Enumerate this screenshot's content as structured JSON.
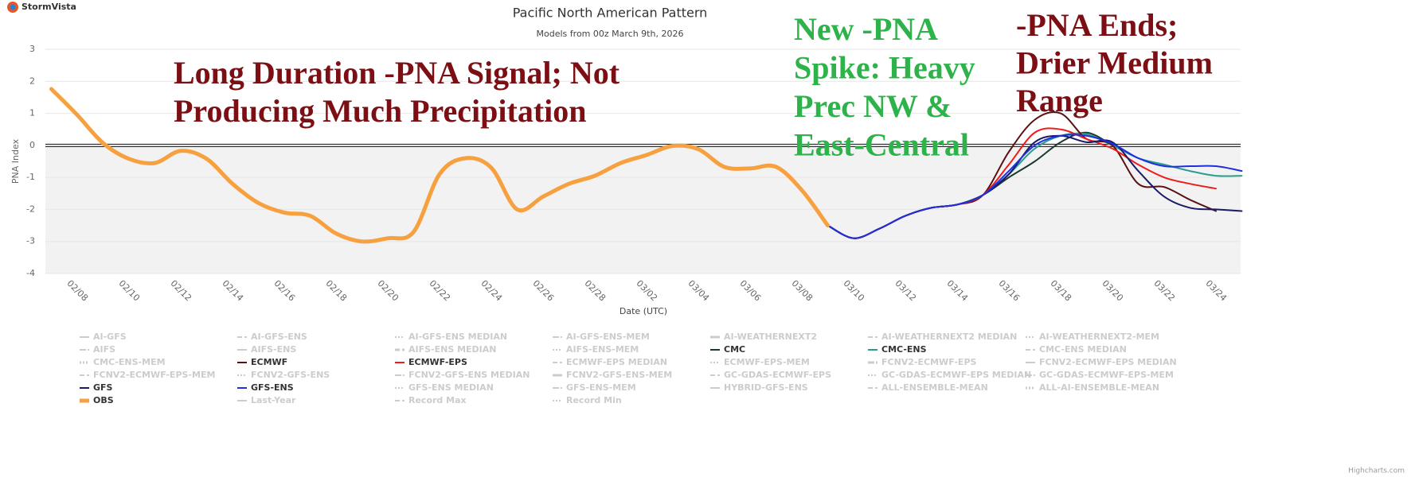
{
  "brand": "StormVista",
  "chart_data": {
    "type": "line",
    "title": "Pacific North American Pattern",
    "subtitle": "Models from 00z March 9th, 2026",
    "y_label": "PNA Index",
    "x_label": "Date (UTC)",
    "credits": "Highcharts.com",
    "grid": true,
    "ylim": [
      -4,
      3
    ],
    "yticks": [
      -4,
      -3,
      -2,
      -1,
      0,
      1,
      2,
      3
    ],
    "x": [
      "02/07",
      "02/08",
      "02/09",
      "02/10",
      "02/11",
      "02/12",
      "02/13",
      "02/14",
      "02/15",
      "02/16",
      "02/17",
      "02/18",
      "02/19",
      "02/20",
      "02/21",
      "02/22",
      "02/23",
      "02/24",
      "02/25",
      "02/26",
      "02/27",
      "02/28",
      "03/01",
      "03/02",
      "03/03",
      "03/04",
      "03/05",
      "03/06",
      "03/07",
      "03/08",
      "03/09",
      "03/10",
      "03/11",
      "03/12",
      "03/13",
      "03/14",
      "03/15",
      "03/16",
      "03/17",
      "03/18",
      "03/19",
      "03/20",
      "03/21",
      "03/22",
      "03/23",
      "03/24",
      "03/25"
    ],
    "xticks": [
      "02/08",
      "02/10",
      "02/12",
      "02/14",
      "02/16",
      "02/18",
      "02/20",
      "02/22",
      "02/24",
      "02/26",
      "02/28",
      "03/02",
      "03/04",
      "03/06",
      "03/08",
      "03/10",
      "03/12",
      "03/14",
      "03/16",
      "03/18",
      "03/20",
      "03/22",
      "03/24"
    ],
    "annotations": [
      {
        "lines": [
          "Long Duration -PNA Signal; Not",
          "Producing Much Precipitation"
        ],
        "color": "#7b0f14"
      },
      {
        "lines": [
          "New -PNA",
          "Spike: Heavy",
          "Prec NW &",
          "East-Central"
        ],
        "color": "#2db34a"
      },
      {
        "lines": [
          "-PNA Ends;",
          "Drier Medium",
          "Range"
        ],
        "color": "#7b0f14"
      }
    ],
    "series": [
      {
        "name": "AI-GFS",
        "visible": false
      },
      {
        "name": "AI-GFS-ENS",
        "visible": false
      },
      {
        "name": "AI-GFS-ENS MEDIAN",
        "visible": false
      },
      {
        "name": "AI-GFS-ENS-MEM",
        "visible": false
      },
      {
        "name": "AI-WEATHERNEXT2",
        "visible": false
      },
      {
        "name": "AI-WEATHERNEXT2 MEDIAN",
        "visible": false
      },
      {
        "name": "AI-WEATHERNEXT2-MEM",
        "visible": false
      },
      {
        "name": "AIFS",
        "visible": false
      },
      {
        "name": "AIFS-ENS",
        "visible": false
      },
      {
        "name": "AIFS-ENS MEDIAN",
        "visible": false
      },
      {
        "name": "AIFS-ENS-MEM",
        "visible": false
      },
      {
        "name": "CMC",
        "visible": true,
        "color": "#1c3b2c",
        "values": [
          null,
          null,
          null,
          null,
          null,
          null,
          null,
          null,
          null,
          null,
          null,
          null,
          null,
          null,
          null,
          null,
          null,
          null,
          null,
          null,
          null,
          null,
          null,
          null,
          null,
          null,
          null,
          null,
          null,
          null,
          -2.5,
          -2.9,
          -2.6,
          -2.2,
          -1.95,
          -1.85,
          -1.55,
          -1.0,
          -0.5,
          0.1,
          0.4,
          0.0,
          null,
          null,
          null,
          null,
          null
        ]
      },
      {
        "name": "CMC-ENS",
        "visible": true,
        "color": "#2a9d8f",
        "values": [
          null,
          null,
          null,
          null,
          null,
          null,
          null,
          null,
          null,
          null,
          null,
          null,
          null,
          null,
          null,
          null,
          null,
          null,
          null,
          null,
          null,
          null,
          null,
          null,
          null,
          null,
          null,
          null,
          null,
          null,
          -2.5,
          -2.9,
          -2.6,
          -2.2,
          -1.95,
          -1.85,
          -1.55,
          -0.9,
          -0.1,
          0.3,
          0.35,
          0.0,
          -0.4,
          -0.6,
          -0.8,
          -0.95,
          -0.95
        ]
      },
      {
        "name": "CMC-ENS MEDIAN",
        "visible": false
      },
      {
        "name": "CMC-ENS-MEM",
        "visible": false
      },
      {
        "name": "ECMWF",
        "visible": true,
        "color": "#5a1010",
        "values": [
          null,
          null,
          null,
          null,
          null,
          null,
          null,
          null,
          null,
          null,
          null,
          null,
          null,
          null,
          null,
          null,
          null,
          null,
          null,
          null,
          null,
          null,
          null,
          null,
          null,
          null,
          null,
          null,
          null,
          null,
          -2.5,
          -2.9,
          -2.6,
          -2.2,
          -1.95,
          -1.85,
          -1.55,
          -0.2,
          0.8,
          1.0,
          0.2,
          0.0,
          -1.2,
          -1.3,
          -1.7,
          -2.05,
          null
        ]
      },
      {
        "name": "ECMWF-EPS",
        "visible": true,
        "color": "#ee1c1c",
        "values": [
          null,
          null,
          null,
          null,
          null,
          null,
          null,
          null,
          null,
          null,
          null,
          null,
          null,
          null,
          null,
          null,
          null,
          null,
          null,
          null,
          null,
          null,
          null,
          null,
          null,
          null,
          null,
          null,
          null,
          null,
          -2.5,
          -2.9,
          -2.6,
          -2.2,
          -1.95,
          -1.85,
          -1.55,
          -0.6,
          0.4,
          0.5,
          0.2,
          -0.1,
          -0.6,
          -1.0,
          -1.2,
          -1.35,
          null
        ]
      },
      {
        "name": "ECMWF-EPS MEDIAN",
        "visible": false
      },
      {
        "name": "ECMWF-EPS-MEM",
        "visible": false
      },
      {
        "name": "FCNV2-ECMWF-EPS",
        "visible": false
      },
      {
        "name": "FCNV2-ECMWF-EPS MEDIAN",
        "visible": false
      },
      {
        "name": "FCNV2-ECMWF-EPS-MEM",
        "visible": false
      },
      {
        "name": "FCNV2-GFS-ENS",
        "visible": false
      },
      {
        "name": "FCNV2-GFS-ENS MEDIAN",
        "visible": false
      },
      {
        "name": "FCNV2-GFS-ENS-MEM",
        "visible": false
      },
      {
        "name": "GC-GDAS-ECMWF-EPS",
        "visible": false
      },
      {
        "name": "GC-GDAS-ECMWF-EPS MEDIAN",
        "visible": false
      },
      {
        "name": "GC-GDAS-ECMWF-EPS-MEM",
        "visible": false
      },
      {
        "name": "GFS",
        "visible": true,
        "color": "#1a1a66",
        "values": [
          null,
          null,
          null,
          null,
          null,
          null,
          null,
          null,
          null,
          null,
          null,
          null,
          null,
          null,
          null,
          null,
          null,
          null,
          null,
          null,
          null,
          null,
          null,
          null,
          null,
          null,
          null,
          null,
          null,
          null,
          -2.5,
          -2.9,
          -2.6,
          -2.2,
          -1.95,
          -1.85,
          -1.55,
          -0.9,
          0.1,
          0.3,
          0.1,
          0.1,
          -0.8,
          -1.6,
          -1.95,
          -2.0,
          -2.05
        ]
      },
      {
        "name": "GFS-ENS",
        "visible": true,
        "color": "#1f2fe0",
        "values": [
          null,
          null,
          null,
          null,
          null,
          null,
          null,
          null,
          null,
          null,
          null,
          null,
          null,
          null,
          null,
          null,
          null,
          null,
          null,
          null,
          null,
          null,
          null,
          null,
          null,
          null,
          null,
          null,
          null,
          null,
          -2.5,
          -2.9,
          -2.6,
          -2.2,
          -1.95,
          -1.85,
          -1.55,
          -0.8,
          0.0,
          0.3,
          0.3,
          0.05,
          -0.4,
          -0.65,
          -0.65,
          -0.65,
          -0.8
        ]
      },
      {
        "name": "GFS-ENS MEDIAN",
        "visible": false
      },
      {
        "name": "GFS-ENS-MEM",
        "visible": false
      },
      {
        "name": "HYBRID-GFS-ENS",
        "visible": false
      },
      {
        "name": "ALL-ENSEMBLE-MEAN",
        "visible": false
      },
      {
        "name": "ALL-AI-ENSEMBLE-MEAN",
        "visible": false
      },
      {
        "name": "OBS",
        "visible": true,
        "color": "#f7a03f",
        "values": [
          1.76,
          0.95,
          0.07,
          -0.42,
          -0.55,
          -0.17,
          -0.42,
          -1.2,
          -1.8,
          -2.1,
          -2.2,
          -2.75,
          -3.0,
          -2.9,
          -2.7,
          -0.9,
          -0.4,
          -0.7,
          -2.0,
          -1.6,
          -1.2,
          -0.95,
          -0.55,
          -0.3,
          -0.02,
          -0.12,
          -0.67,
          -0.72,
          -0.67,
          -1.4,
          -2.5,
          null,
          null,
          null,
          null,
          null,
          null,
          null,
          null,
          null,
          null,
          null,
          null,
          null,
          null,
          null,
          null
        ]
      },
      {
        "name": "Last-Year",
        "visible": false
      },
      {
        "name": "Record Max",
        "visible": false
      },
      {
        "name": "Record Min",
        "visible": false
      }
    ]
  }
}
